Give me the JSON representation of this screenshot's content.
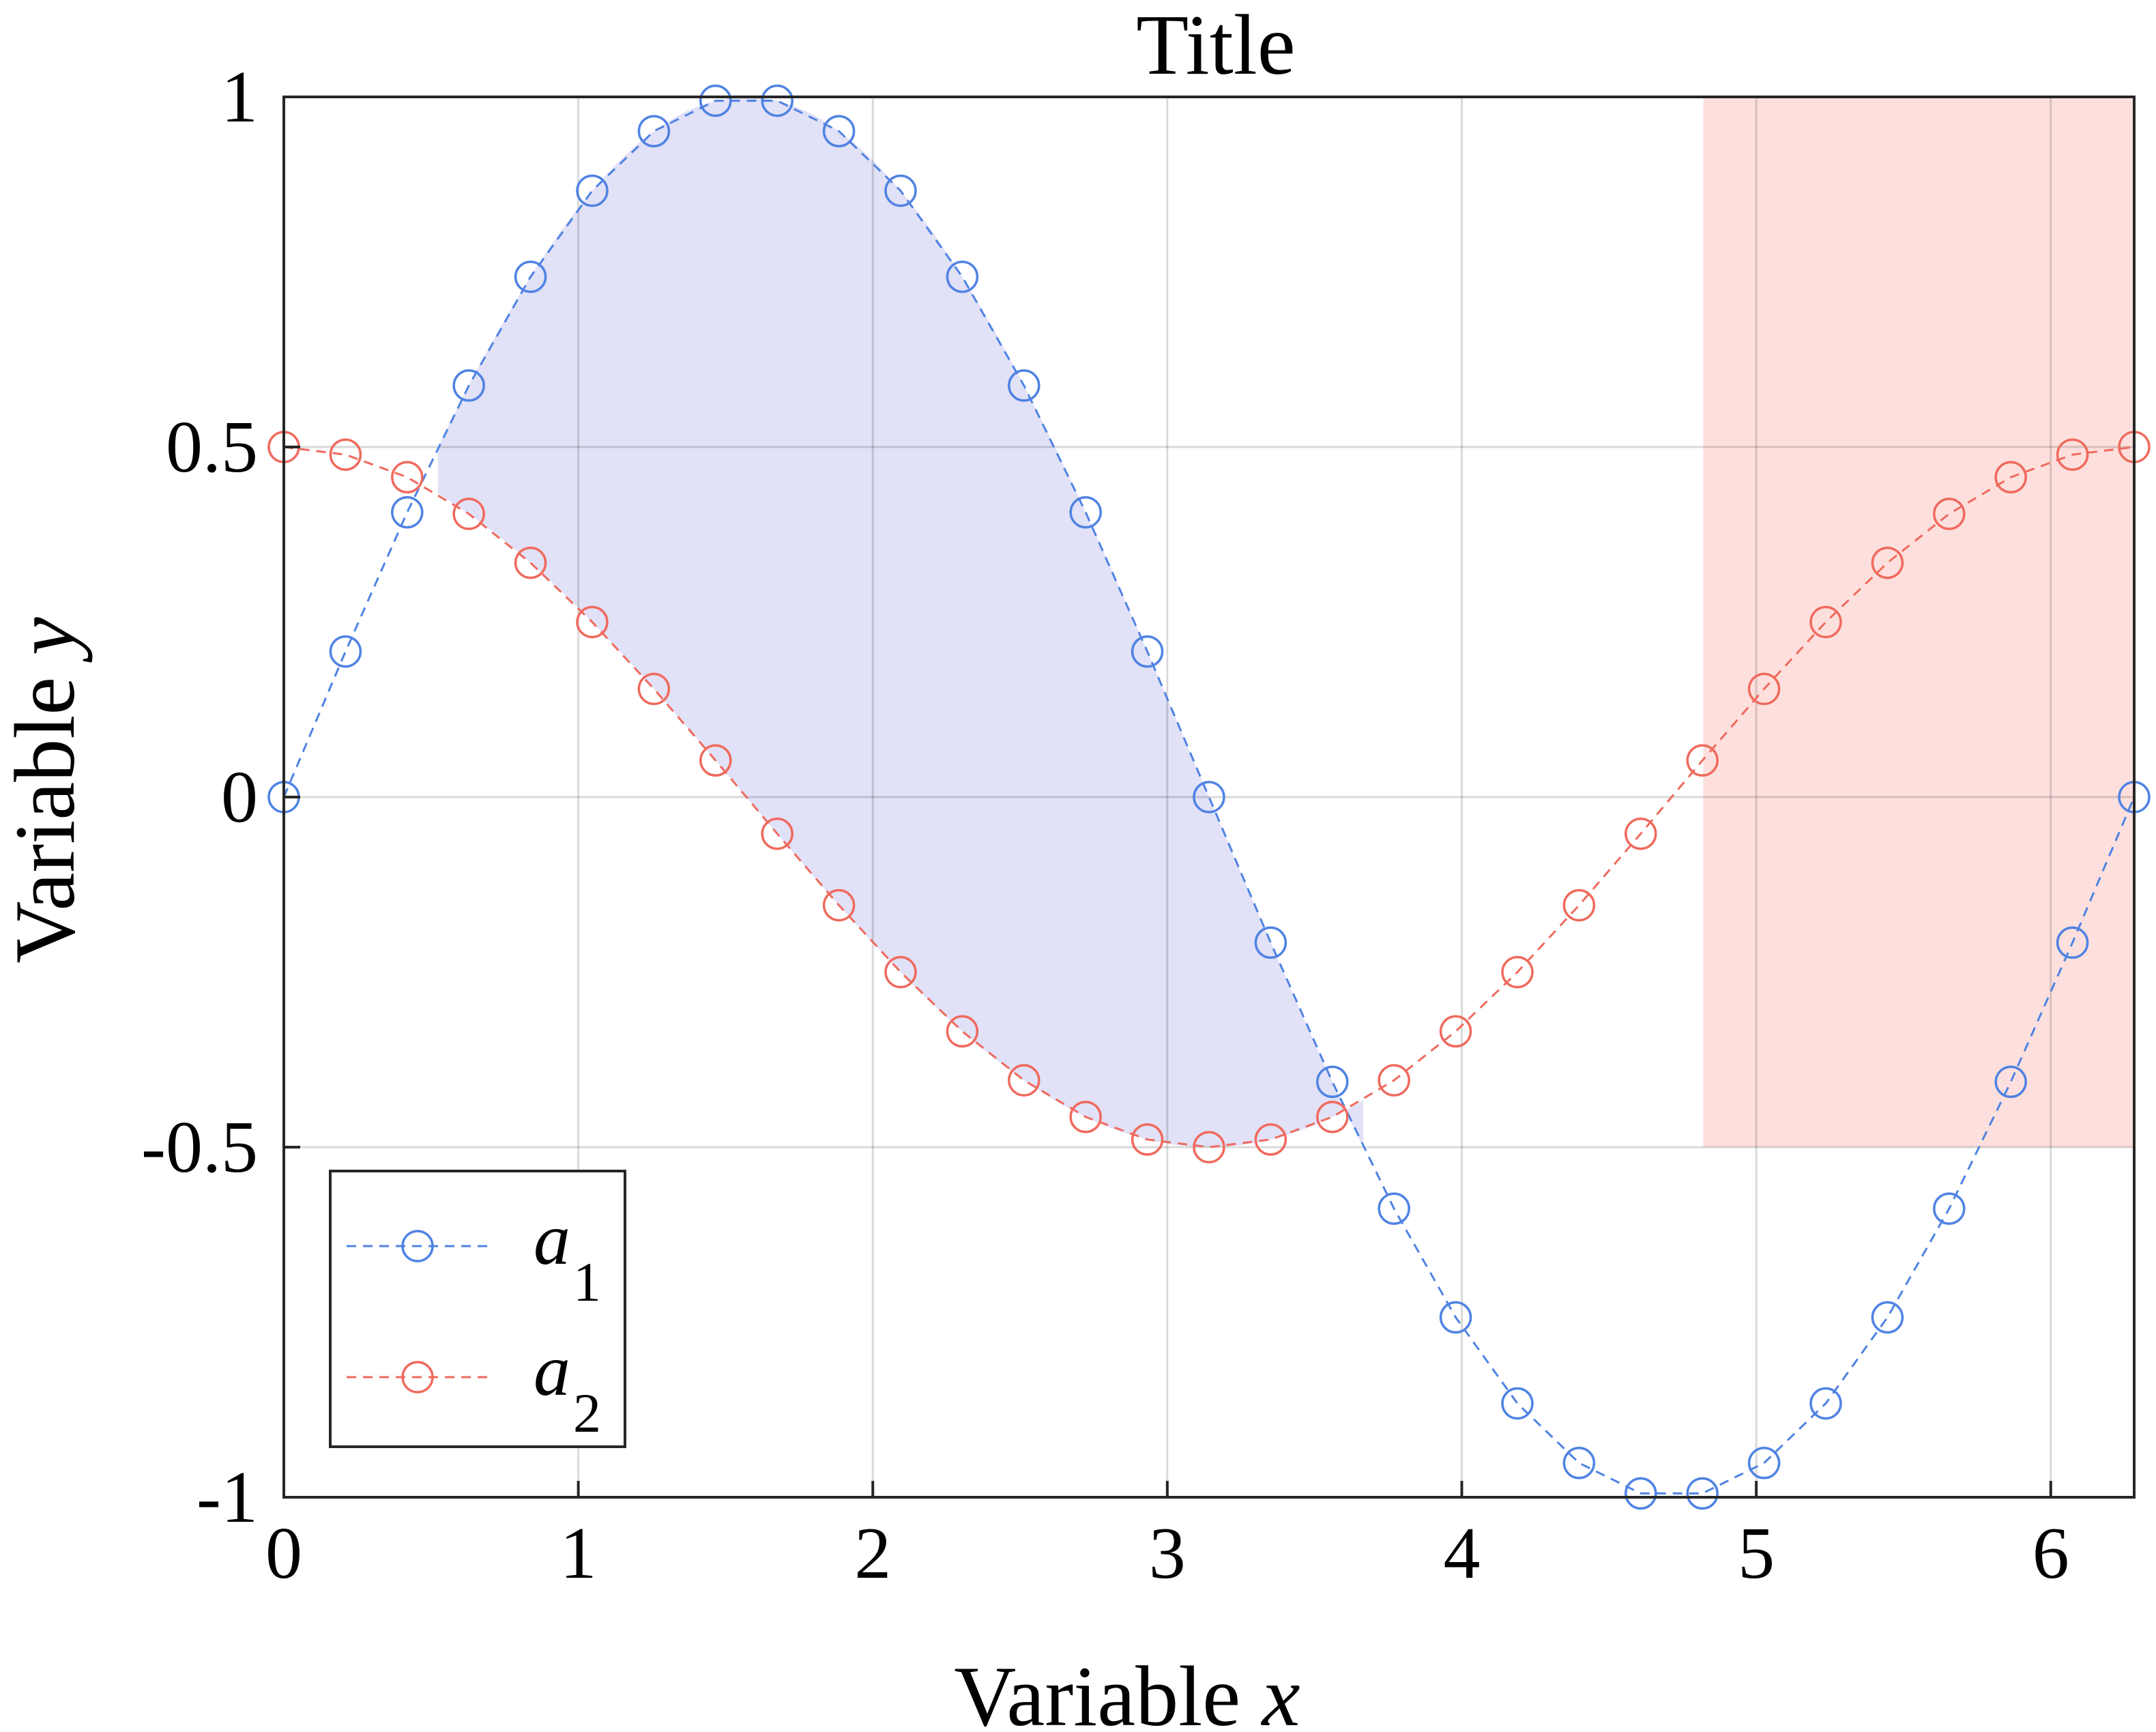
{
  "chart_data": {
    "type": "line",
    "title": "Title",
    "xlabel": {
      "prefix": "Variable ",
      "var": "x"
    },
    "ylabel": {
      "prefix": "Variable ",
      "var": "y"
    },
    "xlim": [
      0,
      6.2832
    ],
    "ylim": [
      -1,
      1
    ],
    "xticks": [
      0,
      1,
      2,
      3,
      4,
      5,
      6
    ],
    "xtick_labels": [
      "0",
      "1",
      "2",
      "3",
      "4",
      "5",
      "6"
    ],
    "yticks": [
      -1,
      -0.5,
      0,
      0.5,
      1
    ],
    "ytick_labels": [
      "-1",
      "-0.5",
      "0",
      "0.5",
      "1"
    ],
    "grid": true,
    "legend_position": "bottom-left",
    "x": [
      0,
      0.2094,
      0.4189,
      0.6283,
      0.8378,
      1.0472,
      1.2566,
      1.4661,
      1.6755,
      1.885,
      2.0944,
      2.3038,
      2.5133,
      2.7227,
      2.9322,
      3.1416,
      3.351,
      3.5605,
      3.7699,
      3.9794,
      4.1888,
      4.3982,
      4.6077,
      4.8171,
      5.0265,
      5.236,
      5.4454,
      5.6549,
      5.8643,
      6.0737,
      6.2832
    ],
    "series": [
      {
        "name": "a1",
        "label": {
          "base": "a",
          "sub": "1"
        },
        "color": "#4F83E3",
        "marker": "circle",
        "linestyle": "dashed",
        "values": [
          0,
          0.2079,
          0.4067,
          0.5878,
          0.7431,
          0.866,
          0.9511,
          0.9945,
          0.9945,
          0.9511,
          0.866,
          0.7431,
          0.5878,
          0.4067,
          0.2079,
          0,
          -0.2079,
          -0.4067,
          -0.5878,
          -0.7431,
          -0.866,
          -0.9511,
          -0.9945,
          -0.9945,
          -0.9511,
          -0.866,
          -0.7431,
          -0.5878,
          -0.4067,
          -0.2079,
          0
        ]
      },
      {
        "name": "a2",
        "label": {
          "base": "a",
          "sub": "2"
        },
        "color": "#F06A5E",
        "marker": "circle",
        "linestyle": "dashed",
        "values": [
          0.5,
          0.4891,
          0.4568,
          0.4045,
          0.3346,
          0.25,
          0.1545,
          0.0523,
          -0.0523,
          -0.1545,
          -0.25,
          -0.3346,
          -0.4045,
          -0.4568,
          -0.4891,
          -0.5,
          -0.4891,
          -0.4568,
          -0.4045,
          -0.3346,
          -0.25,
          -0.1545,
          -0.0523,
          0.0523,
          0.1545,
          0.25,
          0.3346,
          0.4045,
          0.4568,
          0.4891,
          0.5
        ]
      }
    ],
    "fill_between": {
      "upper": "a1",
      "lower": "a2",
      "x_range": [
        0.5236,
        3.6652
      ],
      "color": "#D4D4F4",
      "opacity": 0.7
    },
    "shaded_region": {
      "x_range": [
        4.82,
        6.2832
      ],
      "y_range": [
        -0.5,
        1
      ],
      "color": "#FDE0DD"
    }
  }
}
